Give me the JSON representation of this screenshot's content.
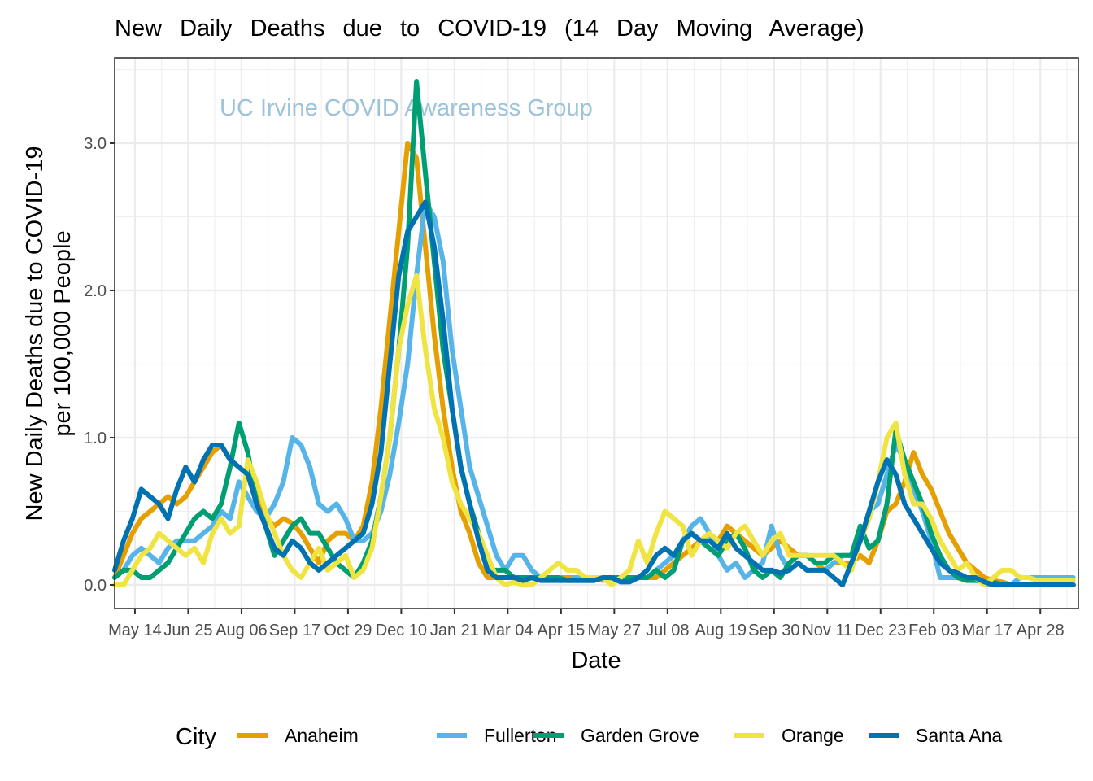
{
  "chart_data": {
    "type": "line",
    "title": "New Daily Deaths due to COVID-19 (14 Day Moving Average)",
    "watermark": "UC Irvine COVID Awareness Group",
    "xlabel": "Date",
    "ylabel_line1": "New Daily Deaths due to COVID-19",
    "ylabel_line2": "per 100,000 People",
    "ylim": [
      -0.15,
      3.5
    ],
    "yticks": [
      0.0,
      1.0,
      2.0,
      3.0
    ],
    "ytick_labels": [
      "0.0",
      "1.0",
      "2.0",
      "3.0"
    ],
    "x_start_date": "2020-04-28",
    "x_days_range": [
      0,
      760
    ],
    "x_step_days": 7,
    "xticks_days": [
      16,
      58,
      100,
      142,
      184,
      226,
      268,
      310,
      352,
      394,
      436,
      478,
      520,
      562,
      604,
      646,
      688,
      730
    ],
    "xtick_labels": [
      "May 14",
      "Jun 25",
      "Aug 06",
      "Sep 17",
      "Oct 29",
      "Dec 10",
      "Jan 21",
      "Mar 04",
      "Apr 15",
      "May 27",
      "Jul 08",
      "Aug 19",
      "Sep 30",
      "Nov 11",
      "Dec 23",
      "Feb 03",
      "Mar 17",
      "Apr 28"
    ],
    "grid": true,
    "legend": {
      "title": "City",
      "position": "bottom"
    },
    "series": [
      {
        "name": "Anaheim",
        "color": "#E69F00",
        "values": [
          0.05,
          0.2,
          0.35,
          0.45,
          0.5,
          0.55,
          0.6,
          0.55,
          0.6,
          0.7,
          0.8,
          0.9,
          0.95,
          0.85,
          0.8,
          0.75,
          0.6,
          0.45,
          0.4,
          0.45,
          0.42,
          0.35,
          0.25,
          0.15,
          0.3,
          0.35,
          0.35,
          0.3,
          0.4,
          0.7,
          1.2,
          1.8,
          2.4,
          3.0,
          2.9,
          2.3,
          1.7,
          1.2,
          0.8,
          0.5,
          0.35,
          0.15,
          0.05,
          0.05,
          0.05,
          0.05,
          0.05,
          0.05,
          0.05,
          0.05,
          0.05,
          0.05,
          0.05,
          0.05,
          0.05,
          0.03,
          0.05,
          0.05,
          0.05,
          0.05,
          0.05,
          0.05,
          0.1,
          0.15,
          0.2,
          0.25,
          0.3,
          0.35,
          0.3,
          0.4,
          0.35,
          0.3,
          0.25,
          0.2,
          0.25,
          0.3,
          0.25,
          0.2,
          0.2,
          0.15,
          0.1,
          0.15,
          0.15,
          0.15,
          0.2,
          0.15,
          0.3,
          0.5,
          0.55,
          0.7,
          0.9,
          0.75,
          0.65,
          0.5,
          0.35,
          0.25,
          0.15,
          0.1,
          0.05,
          0.03,
          0.02,
          0.0,
          0.0,
          0.0,
          0.0,
          0.0,
          0.0,
          0.0,
          0.0
        ]
      },
      {
        "name": "Fullerton",
        "color": "#56B4E9",
        "values": [
          0.05,
          0.1,
          0.2,
          0.25,
          0.2,
          0.15,
          0.25,
          0.3,
          0.3,
          0.3,
          0.35,
          0.4,
          0.5,
          0.45,
          0.7,
          0.6,
          0.5,
          0.45,
          0.55,
          0.7,
          1.0,
          0.95,
          0.8,
          0.55,
          0.5,
          0.55,
          0.45,
          0.3,
          0.3,
          0.35,
          0.5,
          0.75,
          1.1,
          1.5,
          2.1,
          2.6,
          2.5,
          2.2,
          1.6,
          1.2,
          0.8,
          0.6,
          0.4,
          0.2,
          0.1,
          0.2,
          0.2,
          0.1,
          0.05,
          0.05,
          0.05,
          0.03,
          0.05,
          0.05,
          0.05,
          0.05,
          0.05,
          0.03,
          0.05,
          0.05,
          0.05,
          0.1,
          0.15,
          0.2,
          0.3,
          0.4,
          0.45,
          0.35,
          0.2,
          0.1,
          0.15,
          0.05,
          0.1,
          0.15,
          0.4,
          0.2,
          0.1,
          0.15,
          0.1,
          0.1,
          0.1,
          0.15,
          0.2,
          0.2,
          0.3,
          0.5,
          0.55,
          0.75,
          0.95,
          0.85,
          0.65,
          0.5,
          0.3,
          0.05,
          0.05,
          0.05,
          0.05,
          0.05,
          0.0,
          0.0,
          0.0,
          0.0,
          0.05,
          0.05,
          0.05,
          0.05,
          0.05,
          0.05,
          0.05
        ]
      },
      {
        "name": "Garden Grove",
        "color": "#009E73",
        "values": [
          0.05,
          0.1,
          0.1,
          0.05,
          0.05,
          0.1,
          0.15,
          0.25,
          0.35,
          0.45,
          0.5,
          0.45,
          0.55,
          0.8,
          1.1,
          0.9,
          0.55,
          0.4,
          0.2,
          0.3,
          0.4,
          0.45,
          0.35,
          0.35,
          0.25,
          0.15,
          0.1,
          0.05,
          0.15,
          0.3,
          0.6,
          1.0,
          1.6,
          2.3,
          3.42,
          2.8,
          2.2,
          1.6,
          1.2,
          0.8,
          0.55,
          0.35,
          0.1,
          0.1,
          0.1,
          0.05,
          0.05,
          0.05,
          0.05,
          0.05,
          0.05,
          0.03,
          0.03,
          0.03,
          0.03,
          0.05,
          0.05,
          0.05,
          0.05,
          0.05,
          0.05,
          0.1,
          0.05,
          0.1,
          0.3,
          0.35,
          0.3,
          0.25,
          0.2,
          0.3,
          0.35,
          0.25,
          0.1,
          0.05,
          0.1,
          0.05,
          0.15,
          0.2,
          0.2,
          0.15,
          0.15,
          0.2,
          0.2,
          0.2,
          0.4,
          0.25,
          0.3,
          0.55,
          1.05,
          0.85,
          0.7,
          0.55,
          0.35,
          0.2,
          0.1,
          0.05,
          0.03,
          0.03,
          0.02,
          0.02,
          0.0,
          0.0,
          0.0,
          0.0,
          0.0,
          0.0,
          0.0,
          0.0,
          0.0
        ]
      },
      {
        "name": "Orange",
        "color": "#F0E442",
        "values": [
          0.0,
          0.0,
          0.1,
          0.2,
          0.25,
          0.35,
          0.3,
          0.25,
          0.2,
          0.25,
          0.15,
          0.35,
          0.45,
          0.35,
          0.4,
          0.85,
          0.7,
          0.5,
          0.35,
          0.2,
          0.1,
          0.05,
          0.15,
          0.25,
          0.1,
          0.15,
          0.2,
          0.05,
          0.1,
          0.25,
          0.6,
          1.0,
          1.6,
          1.9,
          2.1,
          1.6,
          1.2,
          1.0,
          0.7,
          0.55,
          0.45,
          0.35,
          0.2,
          0.05,
          0.0,
          0.02,
          0.0,
          0.0,
          0.05,
          0.1,
          0.15,
          0.1,
          0.1,
          0.05,
          0.05,
          0.05,
          0.0,
          0.05,
          0.1,
          0.3,
          0.15,
          0.35,
          0.5,
          0.45,
          0.4,
          0.2,
          0.3,
          0.35,
          0.3,
          0.25,
          0.35,
          0.4,
          0.3,
          0.2,
          0.3,
          0.35,
          0.2,
          0.2,
          0.2,
          0.2,
          0.2,
          0.2,
          0.15,
          0.1,
          0.3,
          0.45,
          0.7,
          1.0,
          1.1,
          0.75,
          0.55,
          0.55,
          0.45,
          0.3,
          0.2,
          0.1,
          0.15,
          0.05,
          0.0,
          0.05,
          0.1,
          0.1,
          0.05,
          0.05,
          0.03,
          0.03,
          0.03,
          0.03,
          0.03
        ]
      },
      {
        "name": "Santa Ana",
        "color": "#0072B2",
        "values": [
          0.1,
          0.3,
          0.45,
          0.65,
          0.6,
          0.55,
          0.45,
          0.65,
          0.8,
          0.7,
          0.85,
          0.95,
          0.95,
          0.85,
          0.8,
          0.75,
          0.55,
          0.4,
          0.25,
          0.2,
          0.3,
          0.25,
          0.15,
          0.1,
          0.15,
          0.2,
          0.25,
          0.3,
          0.35,
          0.55,
          0.9,
          1.5,
          2.1,
          2.4,
          2.5,
          2.6,
          2.3,
          1.8,
          1.2,
          0.8,
          0.55,
          0.3,
          0.1,
          0.05,
          0.05,
          0.05,
          0.03,
          0.05,
          0.03,
          0.03,
          0.03,
          0.03,
          0.03,
          0.03,
          0.03,
          0.05,
          0.05,
          0.02,
          0.02,
          0.05,
          0.1,
          0.2,
          0.25,
          0.2,
          0.3,
          0.35,
          0.3,
          0.3,
          0.25,
          0.35,
          0.25,
          0.2,
          0.15,
          0.1,
          0.1,
          0.08,
          0.1,
          0.15,
          0.1,
          0.1,
          0.1,
          0.05,
          0.0,
          0.15,
          0.3,
          0.5,
          0.7,
          0.85,
          0.75,
          0.55,
          0.45,
          0.35,
          0.25,
          0.15,
          0.1,
          0.08,
          0.05,
          0.05,
          0.02,
          0.0,
          0.0,
          0.0,
          0.0,
          0.0,
          0.0,
          0.0,
          0.0,
          0.0,
          0.0
        ]
      }
    ]
  }
}
